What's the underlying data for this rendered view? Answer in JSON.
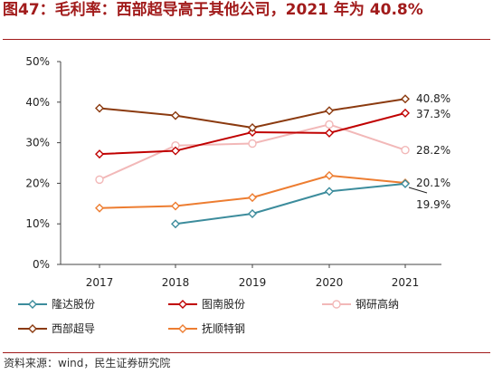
{
  "figure": {
    "title": "图47：毛利率：西部超导高于其他公司，2021 年为 40.8%",
    "source": "资料来源：wind，民生证券研究院"
  },
  "chart_data": {
    "type": "line",
    "x": [
      "2017",
      "2018",
      "2019",
      "2020",
      "2021"
    ],
    "ylim": [
      0,
      50
    ],
    "yticks": [
      "0%",
      "10%",
      "20%",
      "30%",
      "40%",
      "50%"
    ],
    "grid": false,
    "legend_position": "bottom",
    "series": [
      {
        "name": "隆达股份",
        "color": "#3c8c9c",
        "values": [
          null,
          10.0,
          12.5,
          18.0,
          19.9
        ]
      },
      {
        "name": "图南股份",
        "color": "#c00000",
        "values": [
          27.2,
          28.0,
          32.6,
          32.4,
          37.3
        ]
      },
      {
        "name": "钢研高纳",
        "color": "#f2b8b8",
        "values": [
          20.9,
          29.3,
          29.8,
          34.5,
          28.2
        ]
      },
      {
        "name": "西部超导",
        "color": "#8b3a0f",
        "values": [
          38.5,
          36.7,
          33.7,
          37.9,
          40.8
        ]
      },
      {
        "name": "抚顺特钢",
        "color": "#ed7d31",
        "values": [
          13.9,
          14.4,
          16.5,
          21.9,
          20.1
        ]
      }
    ],
    "end_labels": [
      {
        "series": "西部超导",
        "text": "40.8%"
      },
      {
        "series": "图南股份",
        "text": "37.3%"
      },
      {
        "series": "钢研高纳",
        "text": "28.2%"
      },
      {
        "series": "抚顺特钢",
        "text": "20.1%"
      },
      {
        "series": "隆达股份",
        "text": "19.9%"
      }
    ]
  }
}
